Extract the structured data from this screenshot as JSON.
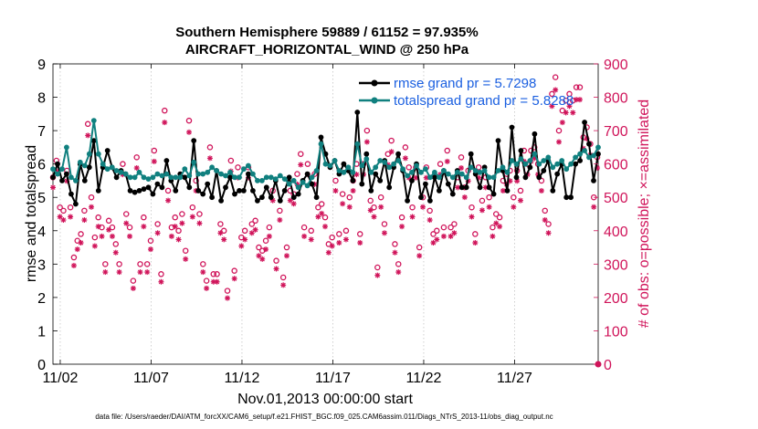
{
  "colors": {
    "rmse": "#000000",
    "spread": "#10807f",
    "obs": "#d0145a",
    "legend_text": "#1a5fe0"
  },
  "chart_data": {
    "type": "line",
    "title": "Southern Hemisphere 59889 / 61152 = 97.935%",
    "subtitle": "AIRCRAFT_HORIZONTAL_WIND @ 250 hPa",
    "xlabel": "Nov.01,2013 00:00:00 start",
    "ylabel": "rmse and totalspread",
    "ylabel_right": "# of obs: o=possible; ×=assimilated",
    "x_range_days": [
      0.6,
      30.6
    ],
    "xticks": [
      1,
      6,
      11,
      16,
      21,
      26
    ],
    "xtick_labels": [
      "11/02",
      "11/07",
      "11/12",
      "11/17",
      "11/22",
      "11/27"
    ],
    "ylim": [
      0,
      9
    ],
    "yticks": [
      "0",
      "1",
      "2",
      "3",
      "4",
      "5",
      "6",
      "7",
      "8",
      "9"
    ],
    "ylim_right": [
      0,
      900
    ],
    "yticks_right": [
      "0",
      "100",
      "200",
      "300",
      "400",
      "500",
      "600",
      "700",
      "800",
      "900"
    ],
    "footer": "data file: /Users/raeder/DAI/ATM_forcXX/CAM6_setup/f.e21.FHIST_BGC.f09_025.CAM6assim.011/Diags_NTrS_2013-11/obs_diag_output.nc",
    "series": [
      {
        "name": "rmse",
        "legend": "rmse grand pr = 5.7298",
        "values": [
          5.6,
          6.0,
          5.5,
          5.7,
          5.1,
          4.8,
          6.0,
          5.5,
          5.9,
          6.7,
          5.2,
          5.9,
          6.4,
          5.9,
          5.6,
          5.8,
          5.7,
          5.2,
          5.15,
          5.2,
          5.25,
          5.3,
          5.1,
          5.4,
          5.3,
          6.1,
          5.5,
          5.2,
          5.7,
          5.6,
          5.3,
          6.7,
          5.2,
          5.1,
          5.4,
          5.0,
          5.8,
          4.9,
          5.3,
          5.6,
          5.1,
          5.2,
          5.2,
          5.7,
          5.2,
          4.9,
          5.0,
          5.3,
          5.0,
          5.5,
          4.9,
          5.2,
          5.6,
          5.0,
          5.1,
          5.5,
          5.7,
          5.4,
          5.0,
          6.8,
          6.3,
          5.9,
          6.1,
          5.7,
          6.0,
          5.8,
          5.5,
          7.55,
          5.4,
          6.3,
          5.2,
          5.7,
          5.5,
          6.1,
          5.3,
          5.9,
          6.3,
          5.8,
          4.9,
          5.5,
          6.0,
          5.0,
          5.4,
          4.9,
          5.6,
          5.2,
          5.8,
          5.4,
          5.1,
          5.8,
          5.3,
          5.3,
          6.3,
          5.7,
          5.3,
          5.9,
          5.3,
          5.1,
          6.7,
          5.8,
          5.2,
          7.1,
          5.6,
          6.4,
          5.6,
          5.9,
          6.9,
          5.6,
          5.8,
          6.1,
          5.2,
          5.7,
          6.0,
          5.0,
          5.0,
          6.0,
          6.1,
          7.25,
          6.6,
          5.5,
          6.3
        ],
        "x_start": 0.6,
        "x_step": 0.25
      },
      {
        "name": "totalspread",
        "legend": "totalspread grand pr = 5.8288",
        "values": [
          5.85,
          5.7,
          5.85,
          6.5,
          5.6,
          5.5,
          6.05,
          5.95,
          6.3,
          7.3,
          6.3,
          6.0,
          5.85,
          5.9,
          5.8,
          5.75,
          5.7,
          5.6,
          5.6,
          5.75,
          5.6,
          5.55,
          5.6,
          5.7,
          5.65,
          5.7,
          5.6,
          5.6,
          5.6,
          5.85,
          5.65,
          6.05,
          5.7,
          5.7,
          5.75,
          5.9,
          5.8,
          5.7,
          5.65,
          5.75,
          5.6,
          5.6,
          5.85,
          5.95,
          5.7,
          5.5,
          5.5,
          5.6,
          5.6,
          5.55,
          5.65,
          5.55,
          5.4,
          5.5,
          5.3,
          5.45,
          5.35,
          5.6,
          5.8,
          6.6,
          6.0,
          5.95,
          6.1,
          5.8,
          5.75,
          5.9,
          5.75,
          6.6,
          5.95,
          6.15,
          5.75,
          5.9,
          6.1,
          6.05,
          5.9,
          6.0,
          6.1,
          5.85,
          5.65,
          5.75,
          5.95,
          5.75,
          5.85,
          5.6,
          5.75,
          5.6,
          5.8,
          5.7,
          5.6,
          5.75,
          5.7,
          5.6,
          5.9,
          5.8,
          5.75,
          5.8,
          5.6,
          5.6,
          5.8,
          5.9,
          5.75,
          6.1,
          6.0,
          6.15,
          6.0,
          6.1,
          6.3,
          6.0,
          6.1,
          6.2,
          5.9,
          6.0,
          6.1,
          5.85,
          6.0,
          6.2,
          6.3,
          6.4,
          6.2,
          6.25,
          6.5
        ],
        "x_start": 0.6,
        "x_step": 0.25
      }
    ],
    "obs_possible": [
      560,
      610,
      470,
      460,
      580,
      470,
      320,
      370,
      390,
      460,
      720,
      500,
      380,
      440,
      410,
      300,
      430,
      410,
      360,
      300,
      600,
      450,
      410,
      250,
      620,
      300,
      440,
      300,
      370,
      640,
      420,
      270,
      760,
      520,
      410,
      440,
      400,
      450,
      340,
      730,
      470,
      550,
      450,
      300,
      250,
      650,
      270,
      270,
      420,
      400,
      220,
      610,
      280,
      590,
      380,
      400,
      590,
      420,
      430,
      350,
      340,
      370,
      410,
      520,
      310,
      460,
      260,
      350,
      520,
      510,
      570,
      630,
      410,
      600,
      400,
      570,
      470,
      480,
      440,
      360,
      380,
      550,
      390,
      510,
      400,
      500,
      550,
      600,
      390,
      600,
      700,
      490,
      470,
      290,
      500,
      420,
      630,
      670,
      360,
      300,
      440,
      650,
      590,
      470,
      590,
      350,
      500,
      590,
      460,
      390,
      400,
      600,
      410,
      640,
      410,
      420,
      560,
      620,
      530,
      580,
      470,
      390,
      590,
      490,
      560,
      500,
      410,
      450,
      440,
      550,
      570,
      580,
      500,
      580,
      520,
      640,
      600,
      640,
      650,
      600,
      550,
      460,
      420,
      810,
      860,
      700,
      760,
      790,
      810,
      790,
      830,
      830,
      680,
      710,
      660,
      500,
      620
    ],
    "obs_x_start": 0.6,
    "obs_x_step": 0.192
  }
}
